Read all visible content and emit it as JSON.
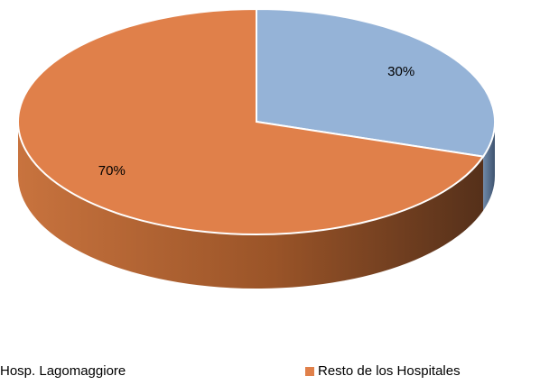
{
  "chart_data": {
    "type": "pie",
    "three_d": true,
    "categories": [
      "Hosp. Lagomaggiore",
      "Resto de los Hospitales"
    ],
    "values": [
      30,
      70
    ],
    "value_labels": [
      "30%",
      "70%"
    ],
    "colors": [
      "#95b3d7",
      "#e0804a"
    ],
    "legend": "bottom"
  }
}
